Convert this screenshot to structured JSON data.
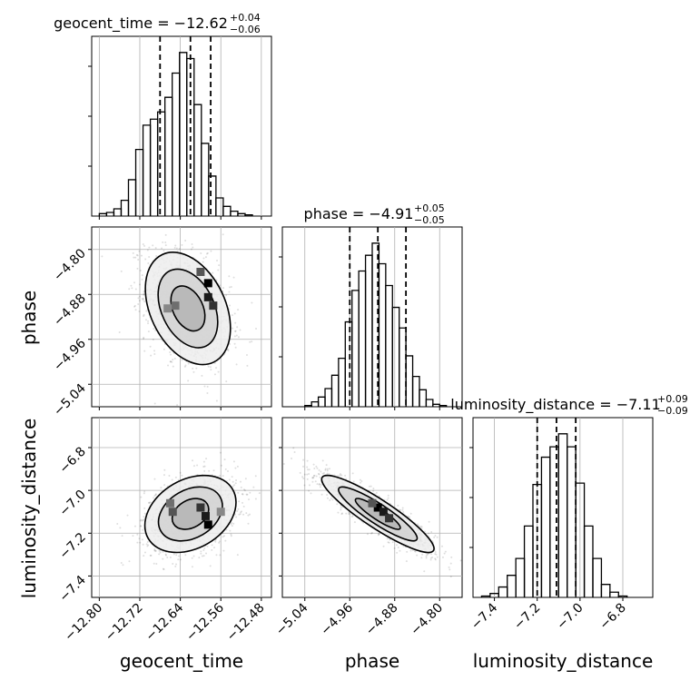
{
  "chart_data": {
    "type": "corner",
    "parameters": [
      {
        "name": "geocent_time",
        "label": "geocent_time",
        "xlim": [
          -12.815,
          -12.46
        ],
        "ticks": [
          -12.8,
          -12.72,
          -12.64,
          -12.56,
          -12.48
        ],
        "tick_labels": [
          "−12.80",
          "−12.72",
          "−12.64",
          "−12.56",
          "−12.48"
        ],
        "title": "geocent_time = −12.62",
        "title_main": "geocent_time = −12.62",
        "title_up": "+0.04",
        "title_down": "−0.06",
        "median": -12.62,
        "q16": -12.68,
        "q84": -12.58
      },
      {
        "name": "phase",
        "label": "phase",
        "xlim": [
          -5.08,
          -4.76
        ],
        "ticks": [
          -5.04,
          -4.96,
          -4.88,
          -4.8
        ],
        "tick_labels": [
          "−5.04",
          "−4.96",
          "−4.88",
          "−4.80"
        ],
        "title": "phase = −4.91",
        "title_main": "phase = −4.91",
        "title_up": "+0.05",
        "title_down": "−0.05",
        "median": -4.91,
        "q16": -4.96,
        "q84": -4.86
      },
      {
        "name": "luminosity_distance",
        "label": "luminosity_distance",
        "xlim": [
          -7.5,
          -6.66
        ],
        "ticks": [
          -7.4,
          -7.2,
          -7.0,
          -6.8
        ],
        "tick_labels": [
          "−7.4",
          "−7.2",
          "−7.0",
          "−6.8"
        ],
        "title": "luminosity_distance = −7.11",
        "title_main": "luminosity_distance = −7.11",
        "title_up": "+0.09",
        "title_down": "−0.09",
        "median": -7.11,
        "q16": -7.2,
        "q84": -7.02
      }
    ],
    "histograms": [
      {
        "param": "geocent_time",
        "edges": [
          -12.8,
          -12.7856,
          -12.7712,
          -12.7568,
          -12.7424,
          -12.728,
          -12.7136,
          -12.6992,
          -12.6848,
          -12.6704,
          -12.656,
          -12.6416,
          -12.6272,
          -12.6128,
          -12.5984,
          -12.584,
          -12.5696,
          -12.5552,
          -12.5408,
          -12.5264,
          -12.512,
          -12.4976
        ],
        "counts": [
          2,
          3,
          6,
          13,
          30,
          55,
          75,
          80,
          86,
          98,
          118,
          135,
          130,
          92,
          60,
          33,
          15,
          8,
          4,
          2,
          1
        ]
      },
      {
        "param": "phase",
        "edges": [
          -5.04,
          -5.028,
          -5.016,
          -5.004,
          -4.992,
          -4.98,
          -4.968,
          -4.956,
          -4.944,
          -4.932,
          -4.92,
          -4.908,
          -4.896,
          -4.884,
          -4.872,
          -4.86,
          -4.848,
          -4.836,
          -4.824,
          -4.812,
          -4.8,
          -4.788
        ],
        "counts": [
          1,
          4,
          8,
          15,
          26,
          40,
          70,
          96,
          112,
          125,
          135,
          118,
          100,
          82,
          65,
          42,
          25,
          14,
          6,
          2,
          1
        ]
      },
      {
        "param": "luminosity_distance",
        "edges": [
          -7.46,
          -7.42,
          -7.38,
          -7.34,
          -7.3,
          -7.26,
          -7.22,
          -7.18,
          -7.14,
          -7.1,
          -7.06,
          -7.02,
          -6.98,
          -6.94,
          -6.9,
          -6.86,
          -6.82,
          -6.78
        ],
        "counts": [
          1,
          3,
          8,
          17,
          30,
          55,
          87,
          108,
          116,
          126,
          116,
          88,
          55,
          30,
          10,
          4,
          1
        ]
      }
    ],
    "joint": [
      {
        "x": "geocent_time",
        "y": "phase",
        "center": [
          -12.625,
          -4.905
        ],
        "spread": [
          0.042,
          0.05
        ],
        "corr": -0.35,
        "peaks": [
          [
            -12.585,
            -4.86
          ],
          [
            -12.585,
            -4.885
          ],
          [
            -12.575,
            -4.9
          ],
          [
            -12.6,
            -4.84
          ],
          [
            -12.65,
            -4.9
          ],
          [
            -12.665,
            -4.905
          ]
        ]
      },
      {
        "x": "geocent_time",
        "y": "luminosity_distance",
        "center": [
          -12.62,
          -7.11
        ],
        "spread": [
          0.045,
          0.09
        ],
        "corr": 0.3,
        "peaks": [
          [
            -12.585,
            -7.16
          ],
          [
            -12.59,
            -7.12
          ],
          [
            -12.6,
            -7.08
          ],
          [
            -12.655,
            -7.1
          ],
          [
            -12.66,
            -7.06
          ],
          [
            -12.56,
            -7.1
          ]
        ]
      },
      {
        "x": "phase",
        "y": "luminosity_distance",
        "center": [
          -4.91,
          -7.11
        ],
        "spread": [
          0.05,
          0.09
        ],
        "corr": -0.9,
        "peaks": [
          [
            -4.91,
            -7.08
          ],
          [
            -4.9,
            -7.1
          ],
          [
            -4.89,
            -7.13
          ],
          [
            -4.92,
            -7.06
          ]
        ]
      }
    ],
    "quantiles": [
      0.16,
      0.5,
      0.84
    ],
    "grid": true
  }
}
